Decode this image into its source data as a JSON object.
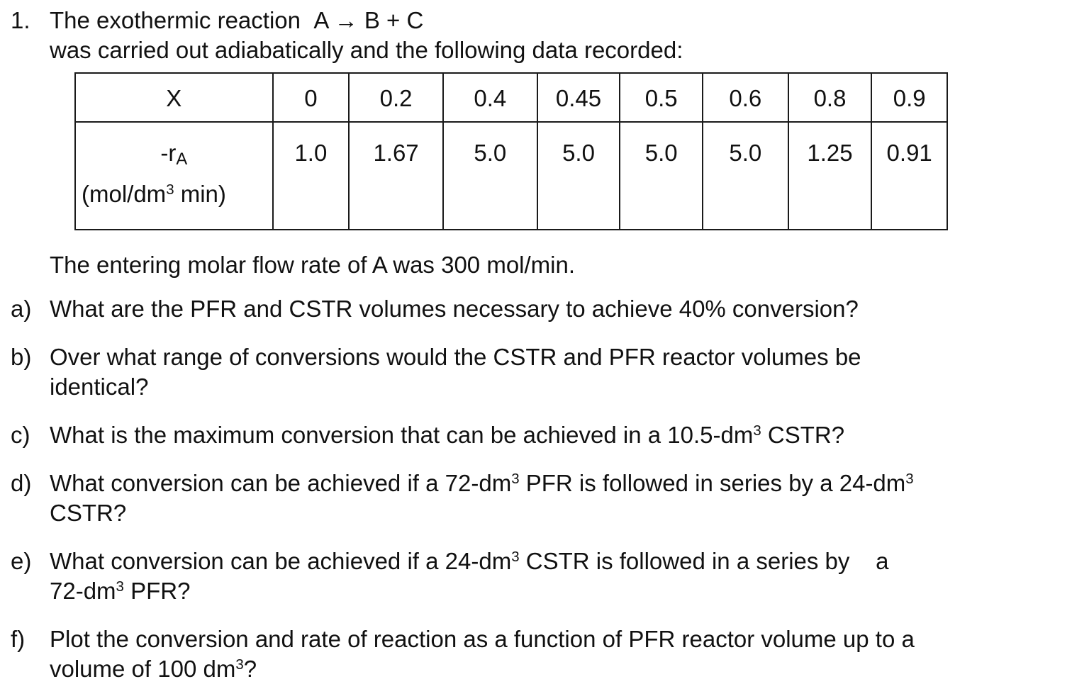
{
  "problem": {
    "number": "1.",
    "intro_segments": [
      {
        "t": "The exothermic reaction  A → B + C"
      },
      {
        "br": true
      },
      {
        "t": "was carried out adiabatically and the following data recorded:"
      }
    ],
    "flow_note": "The entering molar flow rate of A was 300 mol/min."
  },
  "table": {
    "x_row_header": "X",
    "rate_row_header_main": "-r",
    "rate_row_header_sub": "A",
    "rate_units_segments": [
      {
        "t": "(mol/dm"
      },
      {
        "sup": "3"
      },
      {
        "t": " min)"
      }
    ],
    "x_values": [
      "0",
      "0.2",
      "0.4",
      "0.45",
      "0.5",
      "0.6",
      "0.8",
      "0.9"
    ],
    "rate_values": [
      "1.0",
      "1.67",
      "5.0",
      "5.0",
      "5.0",
      "5.0",
      "1.25",
      "0.91"
    ]
  },
  "questions": [
    {
      "label": "a)",
      "segments": [
        {
          "t": "What are the PFR and CSTR volumes necessary to achieve 40% conversion?"
        }
      ]
    },
    {
      "label": "b)",
      "segments": [
        {
          "t": "Over what range of conversions would the CSTR and PFR reactor volumes be"
        },
        {
          "br": true
        },
        {
          "t": "identical?"
        }
      ]
    },
    {
      "label": "c)",
      "segments": [
        {
          "t": "What is the maximum conversion that can be achieved in a 10.5-dm"
        },
        {
          "sup": "3"
        },
        {
          "t": " CSTR?"
        }
      ]
    },
    {
      "label": "d)",
      "segments": [
        {
          "t": "What conversion can be achieved if a 72-dm"
        },
        {
          "sup": "3"
        },
        {
          "t": " PFR is followed in series by a 24-dm"
        },
        {
          "sup": "3"
        },
        {
          "br": true
        },
        {
          "t": "CSTR?"
        }
      ]
    },
    {
      "label": "e)",
      "segments": [
        {
          "t": "What conversion can be achieved if a 24-dm"
        },
        {
          "sup": "3"
        },
        {
          "t": " CSTR is followed in a series by    a"
        },
        {
          "br": true
        },
        {
          "t": "72-dm"
        },
        {
          "sup": "3"
        },
        {
          "t": " PFR?"
        }
      ]
    },
    {
      "label": "f)",
      "segments": [
        {
          "t": "Plot the conversion and rate of reaction as a function of PFR reactor volume up to a"
        },
        {
          "br": true
        },
        {
          "t": "volume of 100 dm"
        },
        {
          "sup": "3"
        },
        {
          "t": "?"
        }
      ]
    }
  ]
}
